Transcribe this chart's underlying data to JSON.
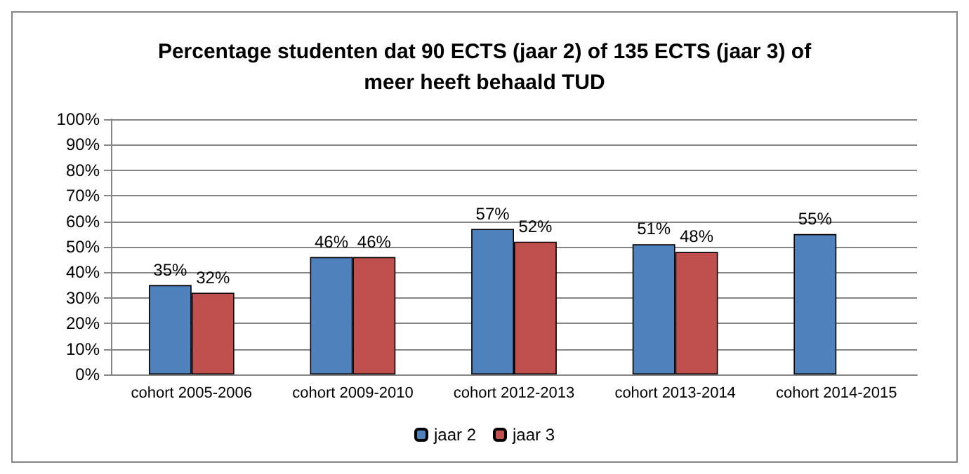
{
  "chart_data": {
    "type": "bar",
    "title": "Percentage studenten dat 90 ECTS (jaar 2) of 135 ECTS (jaar 3) of\nmeer heeft behaald TUD",
    "categories": [
      "cohort 2005-2006",
      "cohort 2009-2010",
      "cohort 2012-2013",
      "cohort 2013-2014",
      "cohort 2014-2015"
    ],
    "series": [
      {
        "name": "jaar 2",
        "color": "#4f81bd",
        "values": [
          35,
          46,
          57,
          51,
          55
        ],
        "value_labels": [
          "35%",
          "46%",
          "57%",
          "51%",
          "55%"
        ]
      },
      {
        "name": "jaar 3",
        "color": "#c0504d",
        "values": [
          32,
          46,
          52,
          48,
          null
        ],
        "value_labels": [
          "32%",
          "46%",
          "52%",
          "48%",
          null
        ]
      }
    ],
    "ylim": [
      0,
      100
    ],
    "yticks": [
      {
        "value": 0,
        "label": "0%"
      },
      {
        "value": 10,
        "label": "10%"
      },
      {
        "value": 20,
        "label": "20%"
      },
      {
        "value": 30,
        "label": "30%"
      },
      {
        "value": 40,
        "label": "40%"
      },
      {
        "value": 50,
        "label": "50%"
      },
      {
        "value": 60,
        "label": "60%"
      },
      {
        "value": 70,
        "label": "70%"
      },
      {
        "value": 80,
        "label": "80%"
      },
      {
        "value": 90,
        "label": "90%"
      },
      {
        "value": 100,
        "label": "100%"
      }
    ],
    "grid": "y",
    "legend": "bottom"
  }
}
